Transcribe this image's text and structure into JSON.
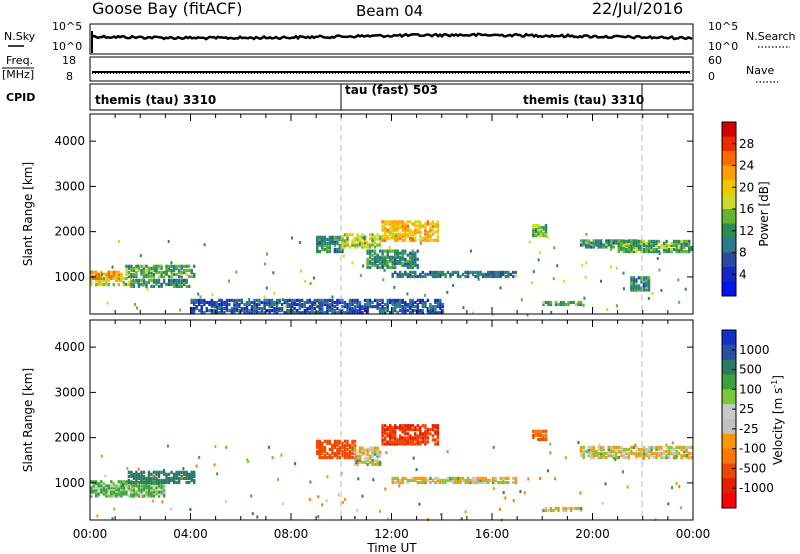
{
  "header": {
    "station": "Goose Bay (fitACF)",
    "beam": "Beam 04",
    "date": "22/Jul/2016"
  },
  "noise_panel": {
    "left_label": "N.Sky",
    "right_label": "N.Search",
    "left_ticks": [
      "10^5",
      "10^0"
    ],
    "right_ticks": [
      "10^5",
      "10^0"
    ]
  },
  "freq_panel": {
    "left_label_1": "Freq.",
    "left_label_2": "[MHz]",
    "right_label": "Nave",
    "left_ticks": [
      "18",
      "8"
    ],
    "right_ticks": [
      "60",
      "0"
    ]
  },
  "cpid_panel": {
    "label": "CPID",
    "segments": [
      {
        "name": "themis (tau) 3310",
        "start_h": 0,
        "end_h": 10
      },
      {
        "name": "tau (fast) 503",
        "start_h": 10,
        "end_h": 22
      },
      {
        "name": "themis (tau) 3310",
        "start_h": 22,
        "end_h": 24
      }
    ]
  },
  "power_panel": {
    "ylabel": "Slant Range [km]",
    "yticks": [
      "4000",
      "3000",
      "2000",
      "1000"
    ],
    "colorbar": {
      "title": "Power [dB]",
      "labels": [
        "28",
        "24",
        "20",
        "16",
        "12",
        "8",
        "4"
      ],
      "colors": [
        "#d40000",
        "#ee2a00",
        "#ff6a00",
        "#ffa000",
        "#f0c800",
        "#c8dc28",
        "#64b432",
        "#288c50",
        "#287a8c",
        "#284aa0",
        "#1428c8",
        "#0014f0"
      ]
    }
  },
  "velocity_panel": {
    "ylabel": "Slant Range [km]",
    "yticks": [
      "4000",
      "3000",
      "2000",
      "1000"
    ],
    "colorbar": {
      "title": "Velocity [m s^-1]",
      "labels": [
        "1000",
        "500",
        "100",
        "25",
        "-25",
        "-100",
        "-500",
        "-1000"
      ],
      "colors": [
        "#1430c8",
        "#2850a0",
        "#287a64",
        "#3ca03c",
        "#78c83c",
        "#c8c8c8",
        "#c0c0c0",
        "#ff9600",
        "#ff7800",
        "#ee4600",
        "#e61e00",
        "#ff0000"
      ]
    }
  },
  "xaxis": {
    "label": "Time UT",
    "ticks": [
      "00:00",
      "04:00",
      "08:00",
      "12:00",
      "16:00",
      "20:00",
      "00:00"
    ]
  },
  "chart_data": {
    "type": "heatmap",
    "x_range_hours": [
      0,
      24
    ],
    "y_range_km": [
      180,
      4600
    ],
    "power_regions": [
      {
        "t0": 0.0,
        "t1": 1.7,
        "r0": 820,
        "r1": 1000,
        "value_db": 18
      },
      {
        "t0": 0.0,
        "t1": 1.3,
        "r0": 960,
        "r1": 1120,
        "value_db": 22
      },
      {
        "t0": 1.4,
        "t1": 4.2,
        "r0": 1000,
        "r1": 1250,
        "value_db": 12
      },
      {
        "t0": 1.6,
        "t1": 4.0,
        "r0": 780,
        "r1": 920,
        "value_db": 10
      },
      {
        "t0": 9.0,
        "t1": 10.0,
        "r0": 1550,
        "r1": 1900,
        "value_db": 10
      },
      {
        "t0": 10.0,
        "t1": 11.5,
        "r0": 1650,
        "r1": 1950,
        "value_db": 16
      },
      {
        "t0": 11.6,
        "t1": 13.8,
        "r0": 1800,
        "r1": 2250,
        "value_db": 20
      },
      {
        "t0": 11.0,
        "t1": 13.0,
        "r0": 1200,
        "r1": 1600,
        "value_db": 10
      },
      {
        "t0": 12.0,
        "t1": 17.0,
        "r0": 1000,
        "r1": 1120,
        "value_db": 8
      },
      {
        "t0": 17.6,
        "t1": 18.2,
        "r0": 1900,
        "r1": 2150,
        "value_db": 14
      },
      {
        "t0": 19.5,
        "t1": 22.0,
        "r0": 1650,
        "r1": 1800,
        "value_db": 10
      },
      {
        "t0": 21.0,
        "t1": 24.0,
        "r0": 1550,
        "r1": 1800,
        "value_db": 12
      },
      {
        "t0": 18.0,
        "t1": 19.6,
        "r0": 380,
        "r1": 460,
        "value_db": 12
      },
      {
        "t0": 21.5,
        "t1": 22.3,
        "r0": 700,
        "r1": 1000,
        "value_db": 10
      },
      {
        "t0": 4.0,
        "t1": 14.0,
        "r0": 200,
        "r1": 500,
        "value_db": 6
      }
    ],
    "velocity_regions": [
      {
        "t0": 0.0,
        "t1": 3.0,
        "r0": 700,
        "r1": 1050,
        "value_ms": 75
      },
      {
        "t0": 1.5,
        "t1": 4.2,
        "r0": 1000,
        "r1": 1250,
        "value_ms": 250
      },
      {
        "t0": 9.0,
        "t1": 10.5,
        "r0": 1550,
        "r1": 1950,
        "value_ms": -400
      },
      {
        "t0": 10.5,
        "t1": 11.5,
        "r0": 1400,
        "r1": 1800,
        "value_ms": 0
      },
      {
        "t0": 11.6,
        "t1": 13.8,
        "r0": 1850,
        "r1": 2300,
        "value_ms": -500
      },
      {
        "t0": 12.0,
        "t1": 17.0,
        "r0": 1000,
        "r1": 1100,
        "value_ms": 0
      },
      {
        "t0": 17.6,
        "t1": 18.2,
        "r0": 1950,
        "r1": 2150,
        "value_ms": -300
      },
      {
        "t0": 19.5,
        "t1": 24.0,
        "r0": 1550,
        "r1": 1800,
        "value_ms": 0
      },
      {
        "t0": 18.0,
        "t1": 19.6,
        "r0": 380,
        "r1": 460,
        "value_ms": 0
      }
    ]
  }
}
